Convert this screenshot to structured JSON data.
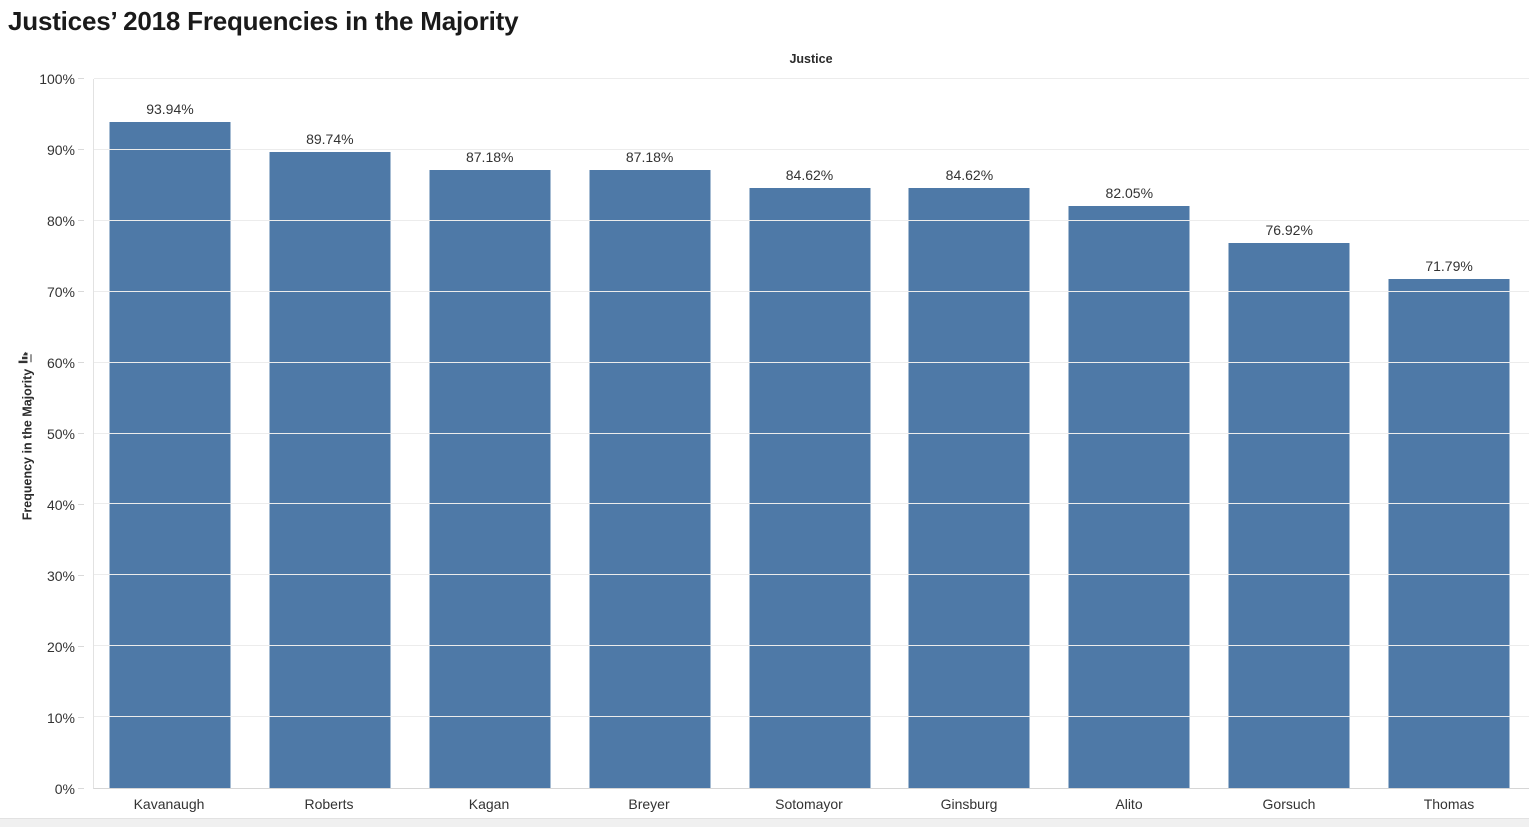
{
  "title": "Justices’ 2018 Frequencies in the Majority",
  "column_header": "Justice",
  "y_axis": {
    "label": "Frequency in the Majority",
    "sort_icon": "sort-descending-icon",
    "ticks": [
      "0%",
      "10%",
      "20%",
      "30%",
      "40%",
      "50%",
      "60%",
      "70%",
      "80%",
      "90%",
      "100%"
    ]
  },
  "chart_data": {
    "type": "bar",
    "title": "Justices’ 2018 Frequencies in the Majority",
    "xlabel": "Justice",
    "ylabel": "Frequency in the Majority",
    "categories": [
      "Kavanaugh",
      "Roberts",
      "Kagan",
      "Breyer",
      "Sotomayor",
      "Ginsburg",
      "Alito",
      "Gorsuch",
      "Thomas"
    ],
    "values": [
      93.94,
      89.74,
      87.18,
      87.18,
      84.62,
      84.62,
      82.05,
      76.92,
      71.79
    ],
    "data_labels": [
      "93.94%",
      "89.74%",
      "87.18%",
      "87.18%",
      "84.62%",
      "84.62%",
      "82.05%",
      "76.92%",
      "71.79%"
    ],
    "ylim": [
      0,
      100
    ],
    "y_tick_step": 10,
    "grid": true,
    "legend": "none",
    "sort_order": "descending",
    "bar_color": "#4e79a7"
  },
  "colors": {
    "bar": "#4e79a7",
    "grid_line": "#ececec",
    "axis_line": "#d6d6d6",
    "text": "#333333",
    "title_text": "#1a1a1a",
    "bottom_strip": "#f0f0f0"
  }
}
